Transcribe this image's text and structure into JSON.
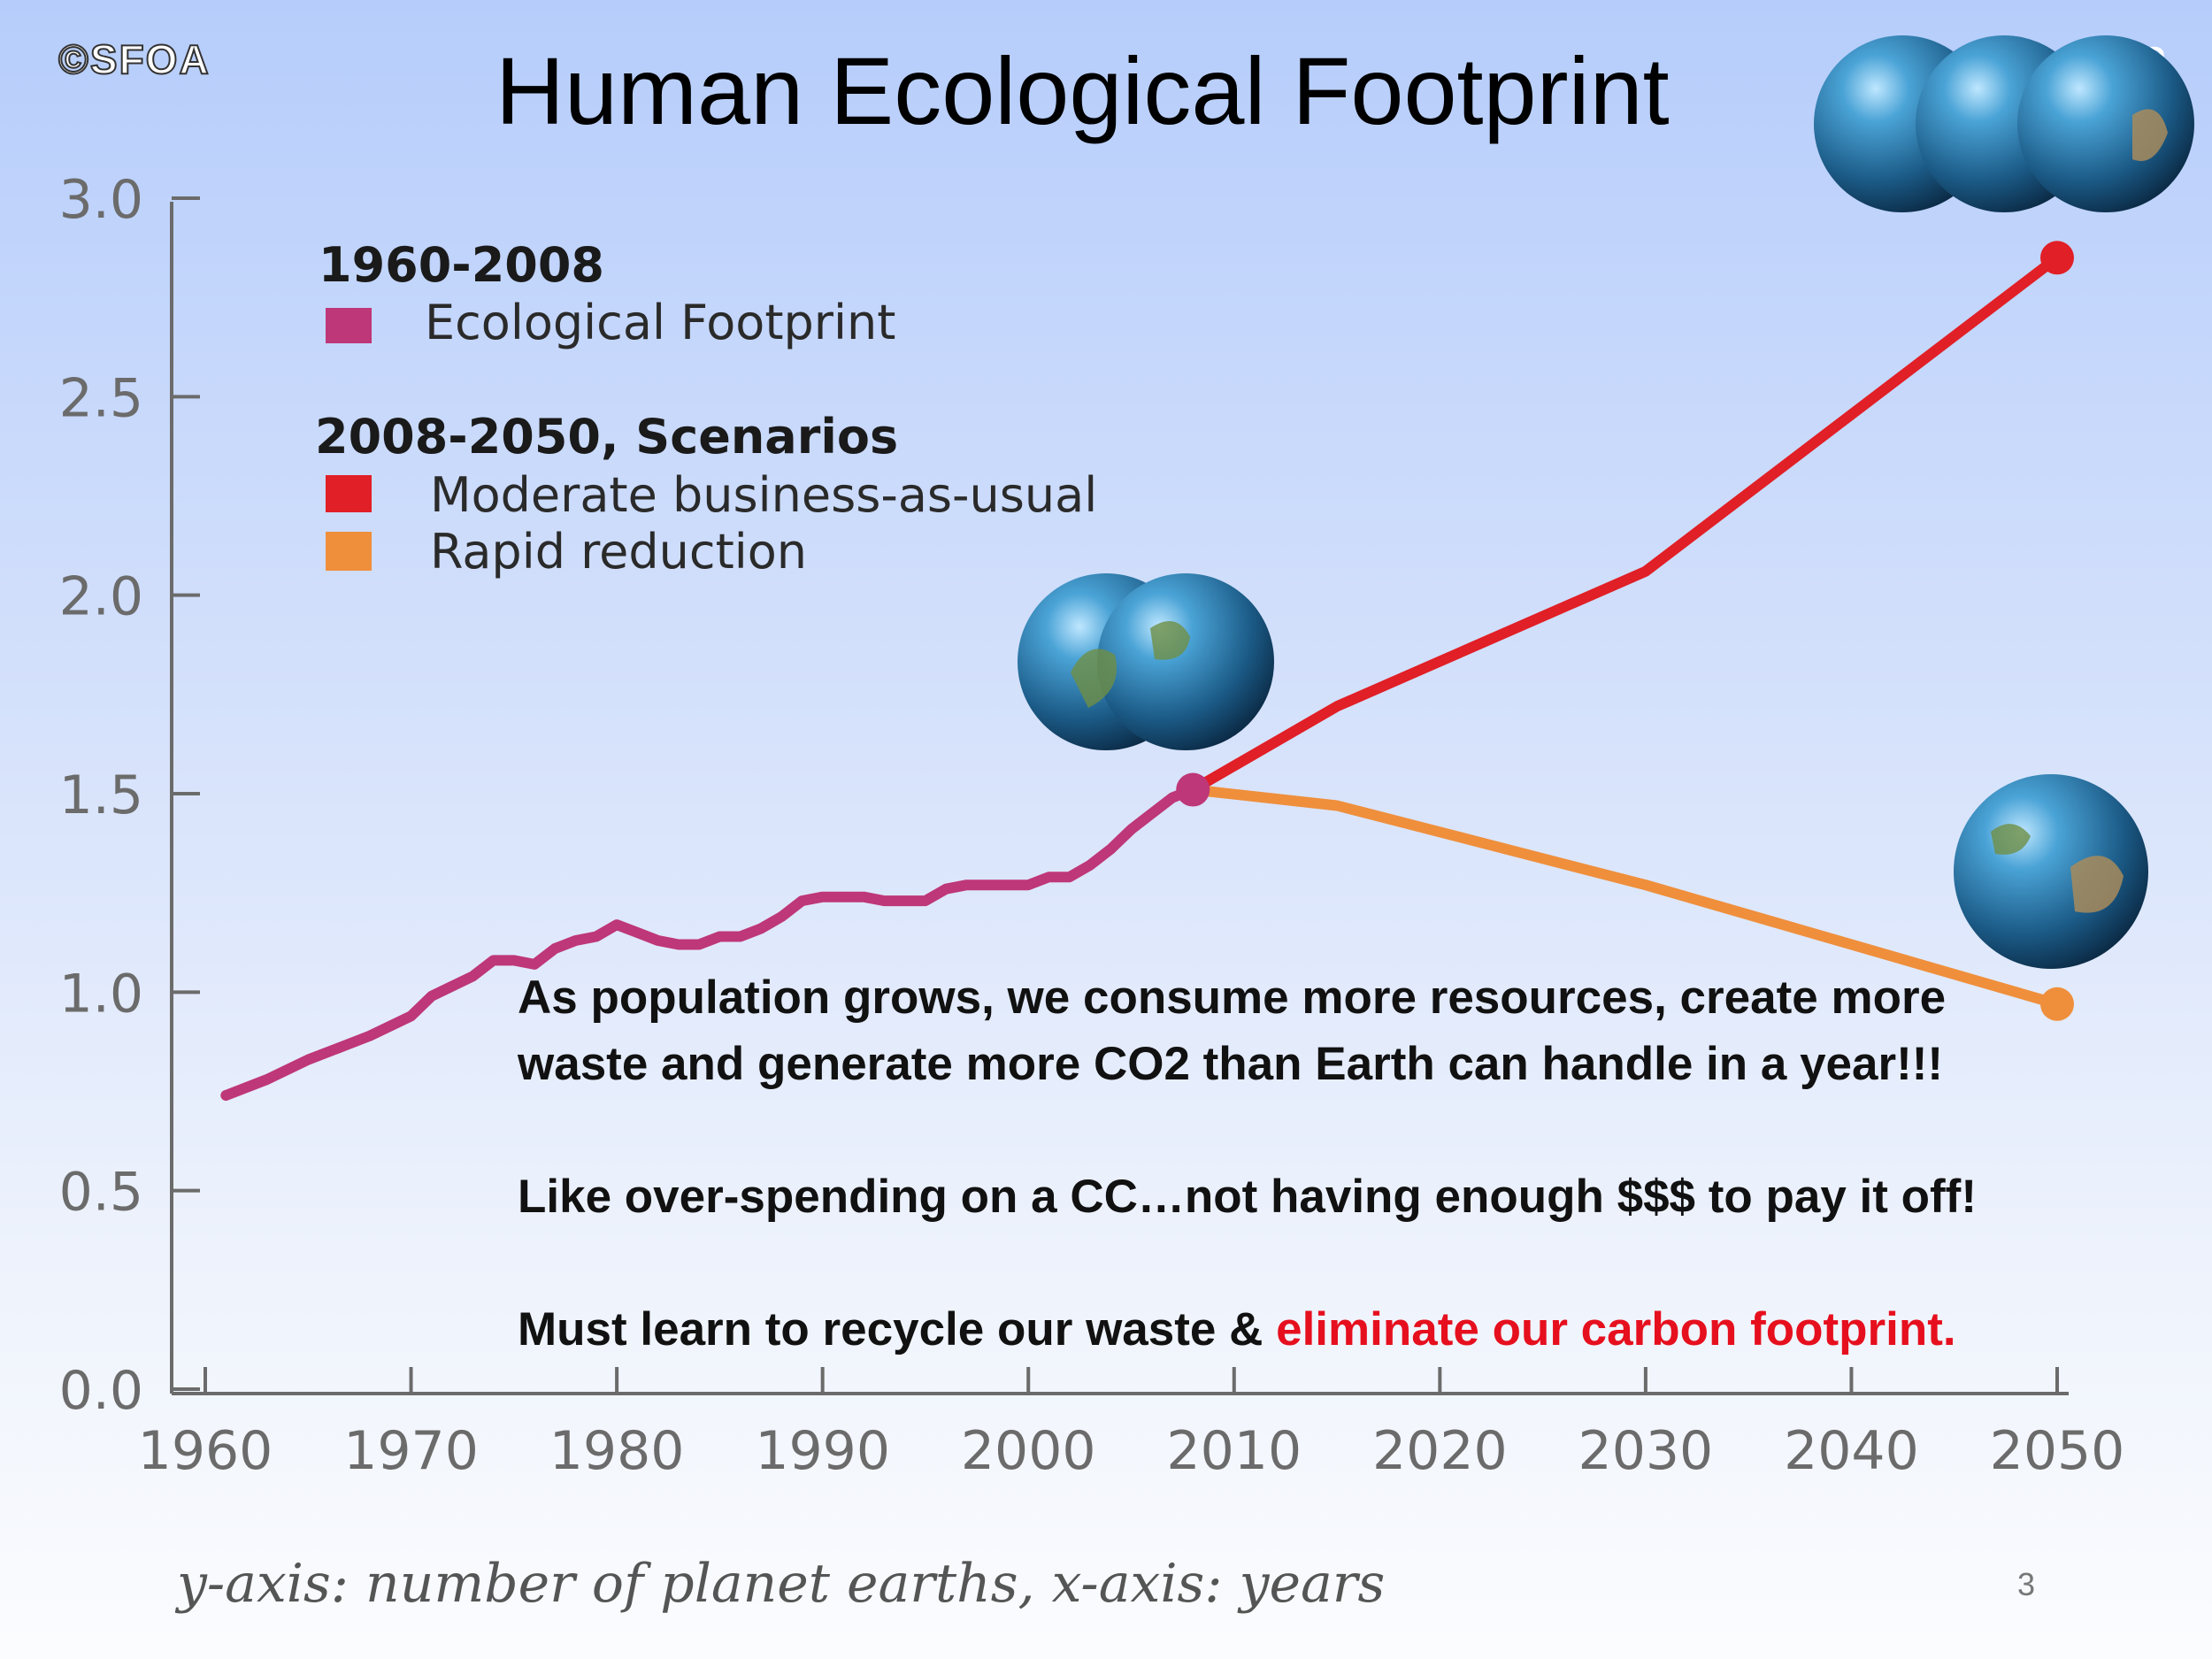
{
  "slide": {
    "copyright": "©SFOA",
    "title": "Human Ecological Footprint",
    "corner_number": "3",
    "caption": "y-axis: number of planet earths, x-axis: years",
    "page_number": "3",
    "annotation": {
      "line1": "As population grows, we consume more resources, create more waste and generate more CO2 than Earth can handle in a year!!!",
      "line2": "Like over-spending on a CC…not having enough $$$ to pay it off!",
      "line3_plain": "Must learn to recycle our waste & ",
      "line3_highlight": "eliminate our carbon footprint."
    }
  },
  "chart_data": {
    "type": "line",
    "xlim": [
      1960,
      2050
    ],
    "ylim": [
      0,
      3.0
    ],
    "x_ticks": [
      "1960",
      "1970",
      "1980",
      "1990",
      "2000",
      "2010",
      "2020",
      "2030",
      "2040",
      "2050"
    ],
    "y_ticks": [
      "0.0",
      "0.5",
      "1.0",
      "1.5",
      "2.0",
      "2.5",
      "3.0"
    ],
    "legend": {
      "group1_title": "1960-2008",
      "group2_title": "2008-2050, Scenarios"
    },
    "series": [
      {
        "name": "Ecological Footprint",
        "color": "#be3778",
        "points": [
          [
            1961,
            0.74
          ],
          [
            1963,
            0.78
          ],
          [
            1965,
            0.83
          ],
          [
            1967,
            0.87
          ],
          [
            1968,
            0.89
          ],
          [
            1970,
            0.94
          ],
          [
            1971,
            0.99
          ],
          [
            1973,
            1.04
          ],
          [
            1974,
            1.08
          ],
          [
            1975,
            1.08
          ],
          [
            1976,
            1.07
          ],
          [
            1977,
            1.11
          ],
          [
            1978,
            1.13
          ],
          [
            1979,
            1.14
          ],
          [
            1980,
            1.17
          ],
          [
            1981,
            1.15
          ],
          [
            1982,
            1.13
          ],
          [
            1983,
            1.12
          ],
          [
            1984,
            1.12
          ],
          [
            1985,
            1.14
          ],
          [
            1986,
            1.14
          ],
          [
            1987,
            1.16
          ],
          [
            1988,
            1.19
          ],
          [
            1989,
            1.23
          ],
          [
            1990,
            1.24
          ],
          [
            1991,
            1.24
          ],
          [
            1992,
            1.24
          ],
          [
            1993,
            1.23
          ],
          [
            1994,
            1.23
          ],
          [
            1995,
            1.23
          ],
          [
            1996,
            1.26
          ],
          [
            1997,
            1.27
          ],
          [
            1998,
            1.27
          ],
          [
            1999,
            1.27
          ],
          [
            2000,
            1.27
          ],
          [
            2001,
            1.29
          ],
          [
            2002,
            1.29
          ],
          [
            2003,
            1.32
          ],
          [
            2004,
            1.36
          ],
          [
            2005,
            1.41
          ],
          [
            2006,
            1.45
          ],
          [
            2007,
            1.49
          ],
          [
            2008,
            1.51
          ]
        ]
      },
      {
        "name": "Moderate business-as-usual",
        "color": "#e11f26",
        "points": [
          [
            2008,
            1.51
          ],
          [
            2015,
            1.72
          ],
          [
            2030,
            2.06
          ],
          [
            2050,
            2.85
          ]
        ]
      },
      {
        "name": "Rapid reduction",
        "color": "#ef8f3c",
        "points": [
          [
            2008,
            1.51
          ],
          [
            2015,
            1.47
          ],
          [
            2030,
            1.27
          ],
          [
            2050,
            0.97
          ]
        ]
      }
    ],
    "markers": [
      {
        "x": 2008,
        "y": 1.51,
        "color": "#be3778"
      },
      {
        "x": 2050,
        "y": 2.85,
        "color": "#e11f26"
      },
      {
        "x": 2050,
        "y": 0.97,
        "color": "#ef8f3c"
      }
    ],
    "icons": [
      "earth-icon-pair-2008",
      "earth-icon-triple-2050",
      "earth-icon-single-2050"
    ]
  }
}
